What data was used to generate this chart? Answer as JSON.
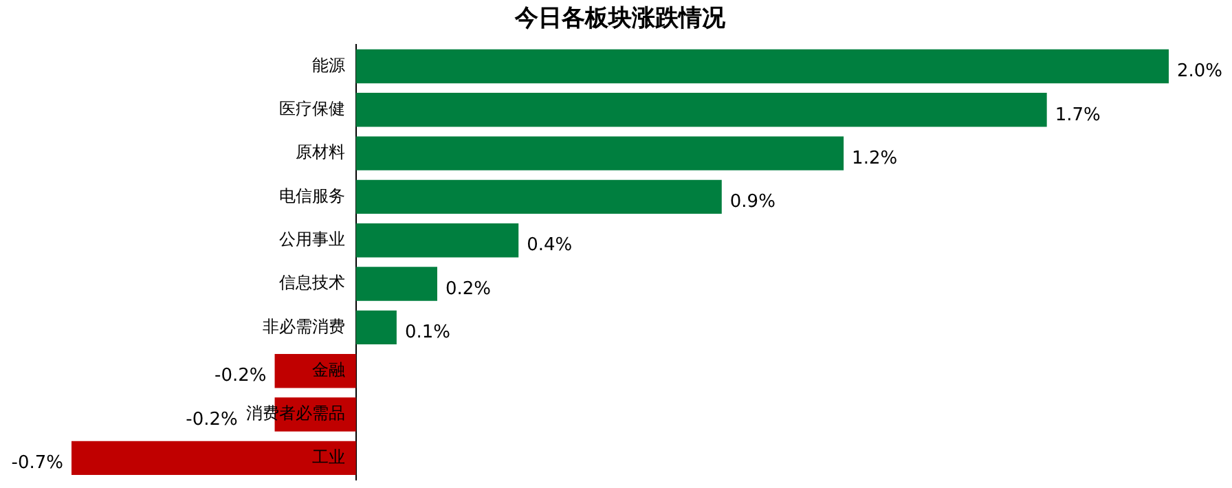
{
  "chart_data": {
    "type": "bar",
    "orientation": "horizontal",
    "title": "今日各板块涨跌情况",
    "categories": [
      "能源",
      "医疗保健",
      "原材料",
      "电信服务",
      "公用事业",
      "信息技术",
      "非必需消费",
      "金融",
      "消费者必需品",
      "工业"
    ],
    "values": [
      2.0,
      1.7,
      1.2,
      0.9,
      0.4,
      0.2,
      0.1,
      -0.2,
      -0.2,
      -0.7
    ],
    "colors": [
      "#007f3f",
      "#007f3f",
      "#007f3f",
      "#007f3f",
      "#007f3f",
      "#007f3f",
      "#007f3f",
      "#c00000",
      "#c00000",
      "#c00000"
    ],
    "value_labels": [
      "2.0%",
      "1.7%",
      "1.2%",
      "0.9%",
      "0.4%",
      "0.2%",
      "0.1%",
      "-0.2%",
      "-0.2%",
      "-0.7%"
    ],
    "xlim": [
      -0.7,
      2.0
    ],
    "tick_labels": "y",
    "legend": false
  }
}
